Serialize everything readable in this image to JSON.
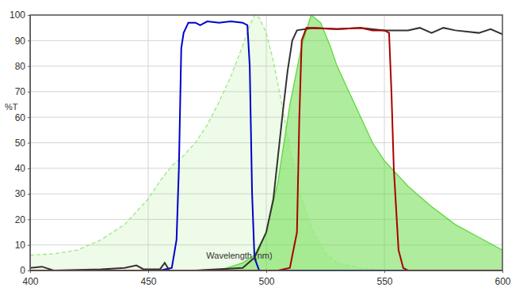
{
  "chart_data": {
    "type": "line",
    "x_label": "Wavelength (nm)",
    "y_label": "%T",
    "xlim": [
      400,
      600
    ],
    "ylim": [
      0,
      100
    ],
    "xticks": [
      400,
      450,
      500,
      550,
      600
    ],
    "yticks": [
      0,
      10,
      20,
      30,
      40,
      50,
      60,
      70,
      80,
      90,
      100
    ],
    "grid": true,
    "series": [
      {
        "type": "area",
        "color": "#9be882",
        "line_style": "dashed",
        "x": [
          400,
          410,
          420,
          430,
          440,
          450,
          455,
          460,
          465,
          470,
          475,
          480,
          485,
          490,
          493,
          495,
          497,
          500,
          503,
          506,
          510,
          515,
          520,
          525,
          530,
          540,
          550
        ],
        "values": [
          6,
          6.5,
          8,
          12,
          18,
          28,
          35,
          41,
          45,
          50,
          57,
          66,
          76,
          88,
          96,
          100,
          99,
          93,
          82,
          68,
          48,
          28,
          15,
          7,
          3,
          1,
          0
        ]
      },
      {
        "type": "area",
        "color": "#5fd93c",
        "line_style": "solid",
        "x": [
          480,
          490,
          495,
          500,
          505,
          510,
          515,
          519,
          523,
          527,
          530,
          535,
          540,
          545,
          550,
          560,
          570,
          580,
          590,
          600
        ],
        "values": [
          0,
          3,
          6,
          15,
          35,
          65,
          88,
          100,
          97,
          88,
          80,
          70,
          60,
          50,
          43,
          33,
          25,
          18,
          13,
          8
        ]
      },
      {
        "type": "line",
        "color": "#0000cc",
        "line_style": "solid",
        "x": [
          400,
          455,
          460,
          462,
          463,
          464,
          465,
          467,
          470,
          472,
          475,
          480,
          485,
          490,
          492,
          493,
          494,
          495,
          497,
          600
        ],
        "values": [
          0,
          0,
          1,
          12,
          40,
          87,
          93,
          97,
          97,
          96,
          97.5,
          97,
          97.5,
          97,
          96,
          80,
          30,
          5,
          0,
          0
        ]
      },
      {
        "type": "line",
        "color": "#333333",
        "line_style": "solid",
        "x": [
          400,
          405,
          410,
          430,
          440,
          445,
          448,
          455,
          457,
          459,
          470,
          490,
          495,
          500,
          503,
          505,
          507,
          509,
          511,
          513,
          520,
          530,
          540,
          550,
          560,
          565,
          570,
          575,
          580,
          590,
          595,
          600
        ],
        "values": [
          1,
          1.5,
          0,
          0.5,
          1,
          2,
          0.5,
          0.5,
          3,
          0,
          0,
          1,
          5,
          15,
          28,
          45,
          62,
          78,
          90,
          94,
          95,
          94.5,
          95,
          94,
          94,
          95,
          93,
          95,
          94,
          93,
          94.5,
          92.5
        ]
      },
      {
        "type": "line",
        "color": "#aa0000",
        "line_style": "solid",
        "x": [
          400,
          505,
          510,
          513,
          514,
          515,
          517,
          530,
          540,
          545,
          550,
          552,
          553,
          554,
          556,
          558,
          560,
          600
        ],
        "values": [
          0,
          0,
          1,
          15,
          60,
          90,
          95,
          94.5,
          95,
          94,
          94,
          93,
          70,
          40,
          8,
          1,
          0,
          0
        ]
      }
    ]
  }
}
